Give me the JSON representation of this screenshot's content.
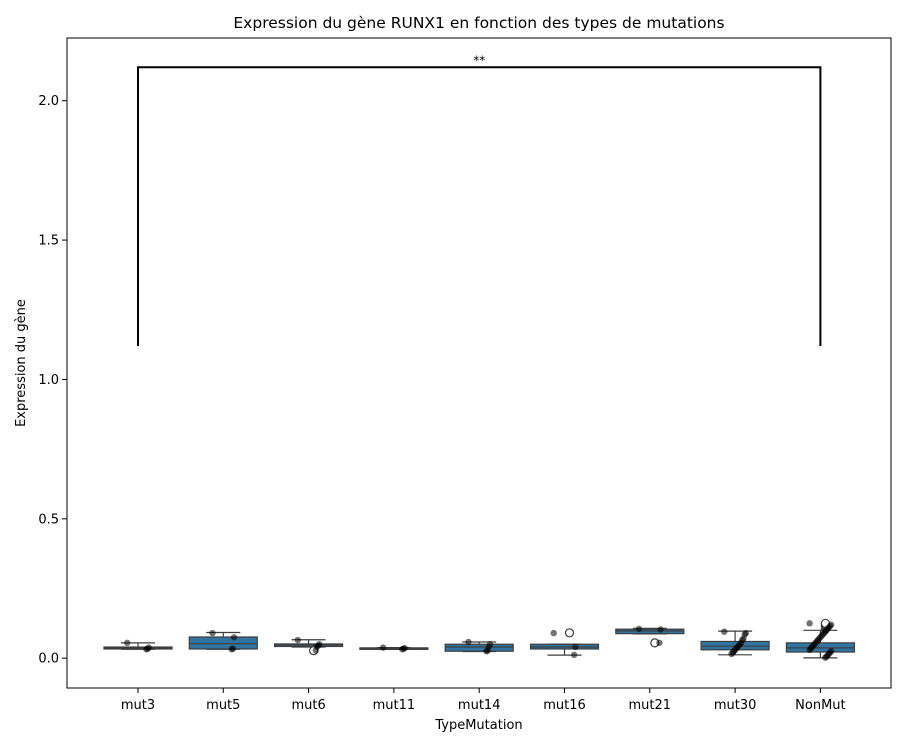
{
  "chart_data": {
    "type": "box",
    "title": "Expression du gène RUNX1 en fonction des types de mutations",
    "xlabel": "TypeMutation",
    "ylabel": "Expression du gène",
    "ylim": [
      -0.107,
      2.225
    ],
    "yticks": [
      "0.0",
      "0.5",
      "1.0",
      "1.5",
      "2.0"
    ],
    "ytick_values": [
      0.0,
      0.5,
      1.0,
      1.5,
      2.0
    ],
    "grid": false,
    "box_color": "#3274a1",
    "point_color": "#000000",
    "categories": [
      "mut3",
      "mut5",
      "mut6",
      "mut11",
      "mut14",
      "mut16",
      "mut21",
      "mut30",
      "NonMut"
    ],
    "boxes": [
      {
        "category": "mut3",
        "whisker_low": 0.032,
        "q1": 0.033,
        "median": 0.036,
        "q3": 0.04,
        "whisker_high": 0.055,
        "outliers": [],
        "points": [
          0.055,
          0.038,
          0.034,
          0.032
        ]
      },
      {
        "category": "mut5",
        "whisker_low": 0.032,
        "q1": 0.033,
        "median": 0.052,
        "q3": 0.076,
        "whisker_high": 0.092,
        "outliers": [],
        "points": [
          0.09,
          0.075,
          0.034,
          0.032
        ]
      },
      {
        "category": "mut6",
        "whisker_low": 0.04,
        "q1": 0.042,
        "median": 0.047,
        "q3": 0.051,
        "whisker_high": 0.066,
        "outliers": [
          0.027
        ],
        "points": [
          0.065,
          0.05,
          0.045,
          0.042,
          0.028
        ]
      },
      {
        "category": "mut11",
        "whisker_low": 0.032,
        "q1": 0.033,
        "median": 0.035,
        "q3": 0.037,
        "whisker_high": 0.038,
        "outliers": [],
        "points": [
          0.038,
          0.036,
          0.034,
          0.032
        ]
      },
      {
        "category": "mut14",
        "whisker_low": 0.024,
        "q1": 0.025,
        "median": 0.04,
        "q3": 0.05,
        "whisker_high": 0.058,
        "outliers": [],
        "points": [
          0.058,
          0.05,
          0.04,
          0.027,
          0.025
        ]
      },
      {
        "category": "mut16",
        "whisker_low": 0.011,
        "q1": 0.033,
        "median": 0.04,
        "q3": 0.05,
        "whisker_high": 0.05,
        "outliers": [
          0.091
        ],
        "points": [
          0.09,
          0.04,
          0.012
        ]
      },
      {
        "category": "mut21",
        "whisker_low": 0.087,
        "q1": 0.088,
        "median": 0.098,
        "q3": 0.104,
        "whisker_high": 0.107,
        "outliers": [
          0.055
        ],
        "points": [
          0.105,
          0.103,
          0.055
        ]
      },
      {
        "category": "mut30",
        "whisker_low": 0.012,
        "q1": 0.03,
        "median": 0.043,
        "q3": 0.06,
        "whisker_high": 0.097,
        "outliers": [],
        "points": [
          0.095,
          0.09,
          0.085,
          0.07,
          0.065,
          0.055,
          0.05,
          0.045,
          0.04,
          0.035,
          0.03,
          0.025,
          0.02,
          0.015
        ]
      },
      {
        "category": "NonMut",
        "whisker_low": 0.001,
        "q1": 0.022,
        "median": 0.037,
        "q3": 0.055,
        "whisker_high": 0.1,
        "outliers": [
          0.105,
          0.11,
          0.115,
          0.12,
          0.125
        ],
        "points": [
          0.125,
          0.12,
          0.115,
          0.11,
          0.105,
          0.1,
          0.095,
          0.09,
          0.085,
          0.08,
          0.075,
          0.07,
          0.065,
          0.06,
          0.055,
          0.05,
          0.045,
          0.04,
          0.035,
          0.03,
          0.025,
          0.02,
          0.015,
          0.01,
          0.005,
          0.002
        ]
      }
    ],
    "annotation": {
      "text": "**",
      "from": "mut3",
      "to": "NonMut",
      "y_bottom": 1.12,
      "y_top": 2.12
    }
  }
}
